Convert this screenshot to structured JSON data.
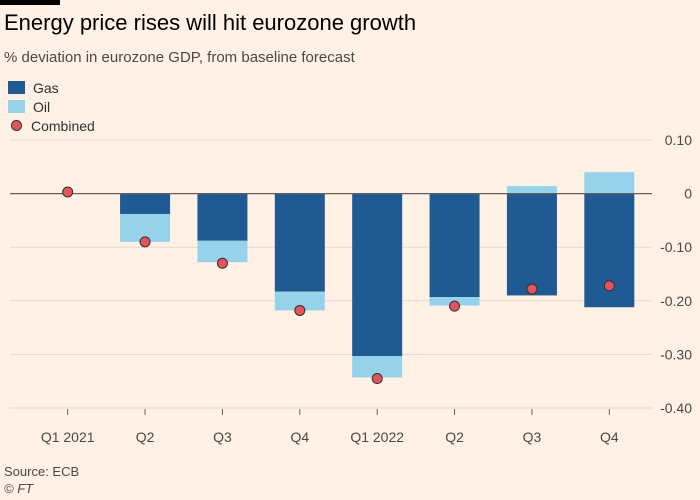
{
  "header": {
    "title": "Energy price rises will hit eurozone growth",
    "subtitle": "% deviation in eurozone GDP, from baseline forecast"
  },
  "colors": {
    "gas": "#1f5b92",
    "oil": "#96d3ea",
    "combined": "#e5545d",
    "gridline": "#e6d9ce",
    "background": "#fff1e5"
  },
  "legend": {
    "gas": "Gas",
    "oil": "Oil",
    "combined": "Combined"
  },
  "footer": {
    "source": "Source: ECB",
    "copyright": "© FT"
  },
  "chart_data": {
    "type": "bar",
    "stacked": true,
    "categories": [
      "Q1 2021",
      "Q2",
      "Q3",
      "Q4",
      "Q1 2022",
      "Q2",
      "Q3",
      "Q4"
    ],
    "series": [
      {
        "name": "Gas",
        "values": [
          0,
          -0.038,
          -0.088,
          -0.183,
          -0.303,
          -0.193,
          -0.19,
          -0.212
        ]
      },
      {
        "name": "Oil",
        "values": [
          0,
          -0.052,
          -0.04,
          -0.035,
          -0.04,
          -0.016,
          0.014,
          0.04
        ]
      },
      {
        "name": "Combined",
        "type": "scatter",
        "values": [
          0.003,
          -0.09,
          -0.13,
          -0.218,
          -0.345,
          -0.21,
          -0.178,
          -0.172
        ]
      }
    ],
    "y_ticks": [
      "0.10",
      "0",
      "-0.10",
      "-0.20",
      "-0.30",
      "-0.40"
    ],
    "y_tick_values": [
      0.1,
      0,
      -0.1,
      -0.2,
      -0.3,
      -0.4
    ],
    "ylim": [
      -0.4,
      0.1
    ],
    "y_axis_side": "right",
    "grid": true,
    "legend_position": "top-left"
  }
}
